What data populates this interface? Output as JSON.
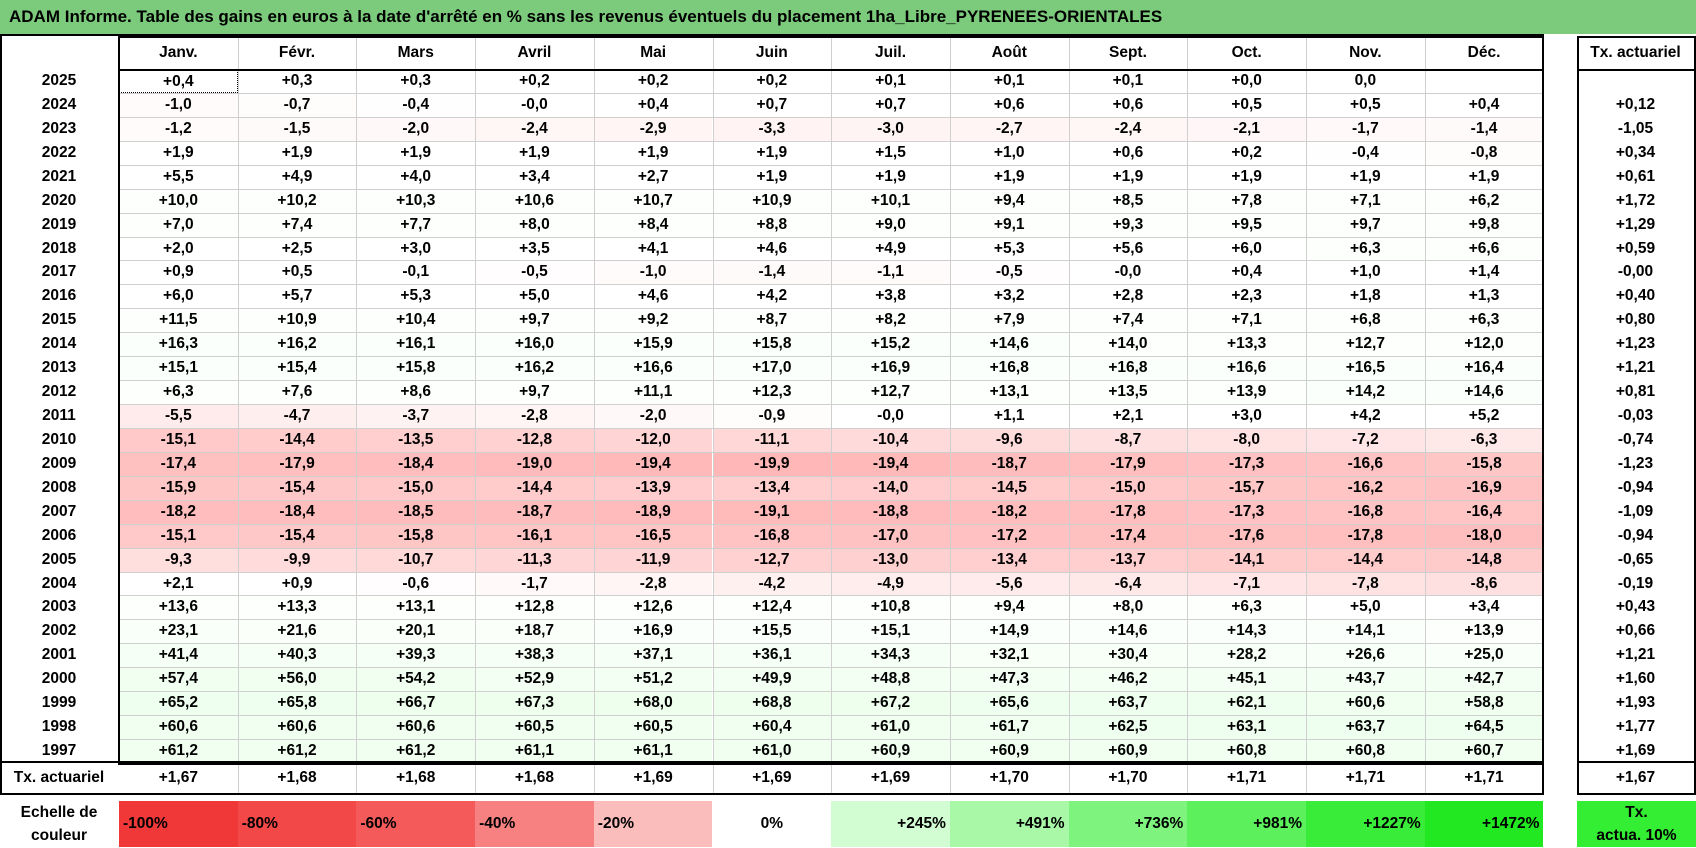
{
  "title": "ADAM Informe. Table des gains en euros à la date d'arrêté en % sans les revenus éventuels du placement 1ha_Libre_PYRENEES-ORIENTALES",
  "months": [
    "Janv.",
    "Févr.",
    "Mars",
    "Avril",
    "Mai",
    "Juin",
    "Juil.",
    "Août",
    "Sept.",
    "Oct.",
    "Nov.",
    "Déc."
  ],
  "tx_header": "Tx. actuariel",
  "rows": [
    {
      "year": "2025",
      "values": [
        "+0,4",
        "+0,3",
        "+0,3",
        "+0,2",
        "+0,2",
        "+0,2",
        "+0,1",
        "+0,1",
        "+0,1",
        "+0,0",
        "0,0",
        ""
      ],
      "tx": ""
    },
    {
      "year": "2024",
      "values": [
        "-1,0",
        "-0,7",
        "-0,4",
        "-0,0",
        "+0,4",
        "+0,7",
        "+0,7",
        "+0,6",
        "+0,6",
        "+0,5",
        "+0,5",
        "+0,4"
      ],
      "tx": "+0,12"
    },
    {
      "year": "2023",
      "values": [
        "-1,2",
        "-1,5",
        "-2,0",
        "-2,4",
        "-2,9",
        "-3,3",
        "-3,0",
        "-2,7",
        "-2,4",
        "-2,1",
        "-1,7",
        "-1,4"
      ],
      "tx": "-1,05"
    },
    {
      "year": "2022",
      "values": [
        "+1,9",
        "+1,9",
        "+1,9",
        "+1,9",
        "+1,9",
        "+1,9",
        "+1,5",
        "+1,0",
        "+0,6",
        "+0,2",
        "-0,4",
        "-0,8"
      ],
      "tx": "+0,34"
    },
    {
      "year": "2021",
      "values": [
        "+5,5",
        "+4,9",
        "+4,0",
        "+3,4",
        "+2,7",
        "+1,9",
        "+1,9",
        "+1,9",
        "+1,9",
        "+1,9",
        "+1,9",
        "+1,9"
      ],
      "tx": "+0,61"
    },
    {
      "year": "2020",
      "values": [
        "+10,0",
        "+10,2",
        "+10,3",
        "+10,6",
        "+10,7",
        "+10,9",
        "+10,1",
        "+9,4",
        "+8,5",
        "+7,8",
        "+7,1",
        "+6,2"
      ],
      "tx": "+1,72"
    },
    {
      "year": "2019",
      "values": [
        "+7,0",
        "+7,4",
        "+7,7",
        "+8,0",
        "+8,4",
        "+8,8",
        "+9,0",
        "+9,1",
        "+9,3",
        "+9,5",
        "+9,7",
        "+9,8"
      ],
      "tx": "+1,29"
    },
    {
      "year": "2018",
      "values": [
        "+2,0",
        "+2,5",
        "+3,0",
        "+3,5",
        "+4,1",
        "+4,6",
        "+4,9",
        "+5,3",
        "+5,6",
        "+6,0",
        "+6,3",
        "+6,6"
      ],
      "tx": "+0,59"
    },
    {
      "year": "2017",
      "values": [
        "+0,9",
        "+0,5",
        "-0,1",
        "-0,5",
        "-1,0",
        "-1,4",
        "-1,1",
        "-0,5",
        "-0,0",
        "+0,4",
        "+1,0",
        "+1,4"
      ],
      "tx": "-0,00"
    },
    {
      "year": "2016",
      "values": [
        "+6,0",
        "+5,7",
        "+5,3",
        "+5,0",
        "+4,6",
        "+4,2",
        "+3,8",
        "+3,2",
        "+2,8",
        "+2,3",
        "+1,8",
        "+1,3"
      ],
      "tx": "+0,40"
    },
    {
      "year": "2015",
      "values": [
        "+11,5",
        "+10,9",
        "+10,4",
        "+9,7",
        "+9,2",
        "+8,7",
        "+8,2",
        "+7,9",
        "+7,4",
        "+7,1",
        "+6,8",
        "+6,3"
      ],
      "tx": "+0,80"
    },
    {
      "year": "2014",
      "values": [
        "+16,3",
        "+16,2",
        "+16,1",
        "+16,0",
        "+15,9",
        "+15,8",
        "+15,2",
        "+14,6",
        "+14,0",
        "+13,3",
        "+12,7",
        "+12,0"
      ],
      "tx": "+1,23"
    },
    {
      "year": "2013",
      "values": [
        "+15,1",
        "+15,4",
        "+15,8",
        "+16,2",
        "+16,6",
        "+17,0",
        "+16,9",
        "+16,8",
        "+16,8",
        "+16,6",
        "+16,5",
        "+16,4"
      ],
      "tx": "+1,21"
    },
    {
      "year": "2012",
      "values": [
        "+6,3",
        "+7,6",
        "+8,6",
        "+9,7",
        "+11,1",
        "+12,3",
        "+12,7",
        "+13,1",
        "+13,5",
        "+13,9",
        "+14,2",
        "+14,6"
      ],
      "tx": "+0,81"
    },
    {
      "year": "2011",
      "values": [
        "-5,5",
        "-4,7",
        "-3,7",
        "-2,8",
        "-2,0",
        "-0,9",
        "-0,0",
        "+1,1",
        "+2,1",
        "+3,0",
        "+4,2",
        "+5,2"
      ],
      "tx": "-0,03"
    },
    {
      "year": "2010",
      "values": [
        "-15,1",
        "-14,4",
        "-13,5",
        "-12,8",
        "-12,0",
        "-11,1",
        "-10,4",
        "-9,6",
        "-8,7",
        "-8,0",
        "-7,2",
        "-6,3"
      ],
      "tx": "-0,74"
    },
    {
      "year": "2009",
      "values": [
        "-17,4",
        "-17,9",
        "-18,4",
        "-19,0",
        "-19,4",
        "-19,9",
        "-19,4",
        "-18,7",
        "-17,9",
        "-17,3",
        "-16,6",
        "-15,8"
      ],
      "tx": "-1,23"
    },
    {
      "year": "2008",
      "values": [
        "-15,9",
        "-15,4",
        "-15,0",
        "-14,4",
        "-13,9",
        "-13,4",
        "-14,0",
        "-14,5",
        "-15,0",
        "-15,7",
        "-16,2",
        "-16,9"
      ],
      "tx": "-0,94"
    },
    {
      "year": "2007",
      "values": [
        "-18,2",
        "-18,4",
        "-18,5",
        "-18,7",
        "-18,9",
        "-19,1",
        "-18,8",
        "-18,2",
        "-17,8",
        "-17,3",
        "-16,8",
        "-16,4"
      ],
      "tx": "-1,09"
    },
    {
      "year": "2006",
      "values": [
        "-15,1",
        "-15,4",
        "-15,8",
        "-16,1",
        "-16,5",
        "-16,8",
        "-17,0",
        "-17,2",
        "-17,4",
        "-17,6",
        "-17,8",
        "-18,0"
      ],
      "tx": "-0,94"
    },
    {
      "year": "2005",
      "values": [
        "-9,3",
        "-9,9",
        "-10,7",
        "-11,3",
        "-11,9",
        "-12,7",
        "-13,0",
        "-13,4",
        "-13,7",
        "-14,1",
        "-14,4",
        "-14,8"
      ],
      "tx": "-0,65"
    },
    {
      "year": "2004",
      "values": [
        "+2,1",
        "+0,9",
        "-0,6",
        "-1,7",
        "-2,8",
        "-4,2",
        "-4,9",
        "-5,6",
        "-6,4",
        "-7,1",
        "-7,8",
        "-8,6"
      ],
      "tx": "-0,19"
    },
    {
      "year": "2003",
      "values": [
        "+13,6",
        "+13,3",
        "+13,1",
        "+12,8",
        "+12,6",
        "+12,4",
        "+10,8",
        "+9,4",
        "+8,0",
        "+6,3",
        "+5,0",
        "+3,4"
      ],
      "tx": "+0,43"
    },
    {
      "year": "2002",
      "values": [
        "+23,1",
        "+21,6",
        "+20,1",
        "+18,7",
        "+16,9",
        "+15,5",
        "+15,1",
        "+14,9",
        "+14,6",
        "+14,3",
        "+14,1",
        "+13,9"
      ],
      "tx": "+0,66"
    },
    {
      "year": "2001",
      "values": [
        "+41,4",
        "+40,3",
        "+39,3",
        "+38,3",
        "+37,1",
        "+36,1",
        "+34,3",
        "+32,1",
        "+30,4",
        "+28,2",
        "+26,6",
        "+25,0"
      ],
      "tx": "+1,21"
    },
    {
      "year": "2000",
      "values": [
        "+57,4",
        "+56,0",
        "+54,2",
        "+52,9",
        "+51,2",
        "+49,9",
        "+48,8",
        "+47,3",
        "+46,2",
        "+45,1",
        "+43,7",
        "+42,7"
      ],
      "tx": "+1,60"
    },
    {
      "year": "1999",
      "values": [
        "+65,2",
        "+65,8",
        "+66,7",
        "+67,3",
        "+68,0",
        "+68,8",
        "+67,2",
        "+65,6",
        "+63,7",
        "+62,1",
        "+60,6",
        "+58,8"
      ],
      "tx": "+1,93"
    },
    {
      "year": "1998",
      "values": [
        "+60,6",
        "+60,6",
        "+60,6",
        "+60,5",
        "+60,5",
        "+60,4",
        "+61,0",
        "+61,7",
        "+62,5",
        "+63,1",
        "+63,7",
        "+64,5"
      ],
      "tx": "+1,77"
    },
    {
      "year": "1997",
      "values": [
        "+61,2",
        "+61,2",
        "+61,2",
        "+61,1",
        "+61,1",
        "+61,0",
        "+60,9",
        "+60,9",
        "+60,9",
        "+60,8",
        "+60,8",
        "+60,7"
      ],
      "tx": "+1,69"
    }
  ],
  "footer": {
    "label": "Tx. actuariel",
    "values": [
      "+1,67",
      "+1,68",
      "+1,68",
      "+1,68",
      "+1,69",
      "+1,69",
      "+1,69",
      "+1,70",
      "+1,70",
      "+1,71",
      "+1,71",
      "+1,71"
    ],
    "tx": "+1,67"
  },
  "legend": {
    "label_line1": "Echelle de",
    "label_line2": "couleur",
    "cells": [
      {
        "text": "-100%",
        "color": "#f03838",
        "align": "left"
      },
      {
        "text": "-80%",
        "color": "#f24848",
        "align": "left"
      },
      {
        "text": "-60%",
        "color": "#f45a5a",
        "align": "left"
      },
      {
        "text": "-40%",
        "color": "#f78080",
        "align": "left"
      },
      {
        "text": "-20%",
        "color": "#fbbcbc",
        "align": "left"
      },
      {
        "text": "0%",
        "color": "#ffffff",
        "align": "center"
      },
      {
        "text": "+245%",
        "color": "#d2fcd2",
        "align": "right"
      },
      {
        "text": "+491%",
        "color": "#a8f8a8",
        "align": "right"
      },
      {
        "text": "+736%",
        "color": "#7ef47e",
        "align": "right"
      },
      {
        "text": "+981%",
        "color": "#5cf05c",
        "align": "right"
      },
      {
        "text": "+1227%",
        "color": "#3aec3a",
        "align": "right"
      },
      {
        "text": "+1472%",
        "color": "#22e822",
        "align": "right"
      }
    ],
    "tx_line1": "Tx.",
    "tx_line2": "actua. 10%"
  }
}
